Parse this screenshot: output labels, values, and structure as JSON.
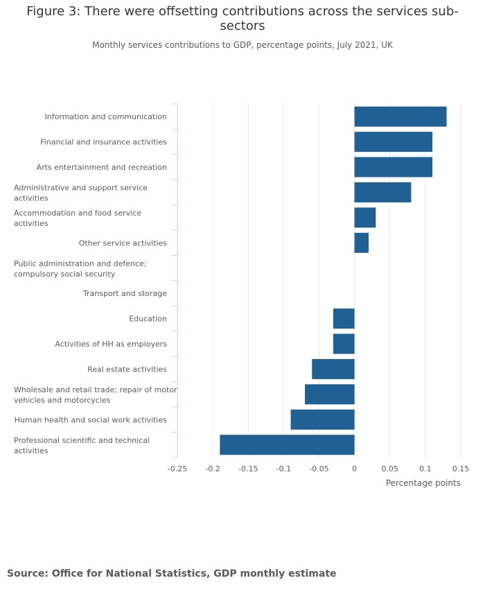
{
  "title": "Figure 3: There were offsetting contributions across the services sub-\nsectors",
  "subtitle": "Monthly services contributions to GDP, percentage points, July 2021, UK",
  "source": "Source: Office for National Statistics, GDP monthly estimate",
  "chart_data": {
    "type": "bar",
    "orientation": "horizontal",
    "categories": [
      [
        "Information and communication"
      ],
      [
        "Financial and insurance activities"
      ],
      [
        "Arts entertainment and recreation"
      ],
      [
        "Administrative and support service",
        "activities"
      ],
      [
        "Accommodation and food service",
        "activities"
      ],
      [
        "Other service activities"
      ],
      [
        "Public administration and defence;",
        "compulsory social security"
      ],
      [
        "Transport and storage"
      ],
      [
        "Education"
      ],
      [
        "Activities of HH as employers"
      ],
      [
        "Real estate activities"
      ],
      [
        "Wholesale and retail trade; repair of motor",
        "vehicles and motorcycles"
      ],
      [
        "Human health and social work activities"
      ],
      [
        "Professional scientific and technical",
        "activities"
      ]
    ],
    "values": [
      0.13,
      0.11,
      0.11,
      0.08,
      0.03,
      0.02,
      0,
      0,
      -0.03,
      -0.03,
      -0.06,
      -0.07,
      -0.09,
      -0.19
    ],
    "xlim": [
      -0.25,
      0.15
    ],
    "xticks": [
      "-0.25",
      "-0.2",
      "-0.15",
      "-0.1",
      "-0.05",
      "0",
      "0.05",
      "0.1",
      "0.15"
    ],
    "xlabel": "Percentage points",
    "ylabel": "",
    "grid": "vertical",
    "bar_color": "#206095",
    "grid_color": "#e6e6e6",
    "axis_color": "#bcd6ee"
  }
}
